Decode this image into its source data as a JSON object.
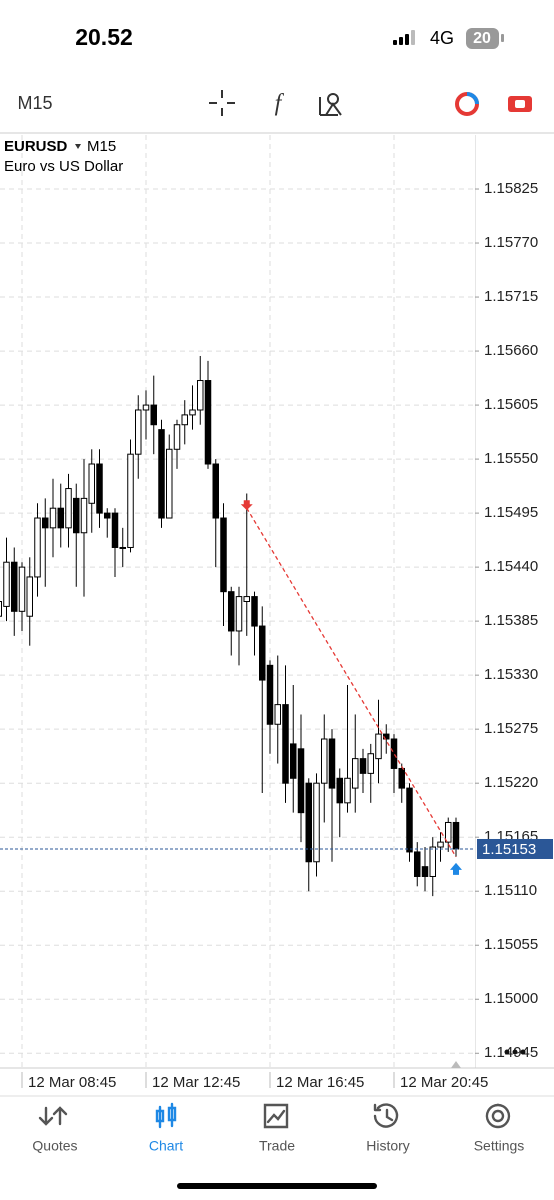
{
  "status_bar": {
    "time": "20.52",
    "network": "4G",
    "battery": "20"
  },
  "toolbar": {
    "timeframe": "M15"
  },
  "chart_data": {
    "type": "candlestick",
    "symbol": "EURUSD",
    "timeframe": "M15",
    "description": "Euro vs US Dollar",
    "categories": [
      null,
      null,
      null,
      "12 Mar 08:45",
      null,
      null,
      null,
      null,
      null,
      null,
      null,
      null,
      null,
      null,
      null,
      null,
      null,
      null,
      null,
      "12 Mar 12:45",
      null,
      null,
      null,
      null,
      null,
      null,
      null,
      null,
      null,
      null,
      null,
      null,
      null,
      null,
      null,
      "12 Mar 16:45",
      null,
      null,
      null,
      null,
      null,
      null,
      null,
      null,
      null,
      null,
      null,
      null,
      null,
      null,
      null,
      "12 Mar 20:45",
      null,
      null,
      null,
      null,
      null,
      null,
      null,
      null
    ],
    "open": [
      1.1539,
      1.154,
      1.15445,
      1.15395,
      1.1539,
      1.1543,
      1.1549,
      1.1548,
      1.155,
      1.1548,
      1.1551,
      1.15475,
      1.15505,
      1.15545,
      1.15495,
      1.15495,
      1.1546,
      1.1546,
      1.15555,
      1.156,
      1.15605,
      1.1558,
      1.1549,
      1.1556,
      1.15585,
      1.15595,
      1.156,
      1.1563,
      1.15545,
      1.1549,
      1.15415,
      1.15375,
      1.15405,
      1.1541,
      1.1538,
      1.1534,
      1.1528,
      1.153,
      1.1526,
      1.15255,
      1.1522,
      1.1514,
      1.1522,
      1.15265,
      1.15225,
      1.152,
      1.15215,
      1.15245,
      1.1523,
      1.15245,
      1.1527,
      1.15265,
      1.15235,
      1.15215,
      1.1515,
      1.15135,
      1.15125,
      1.15155,
      1.1516,
      1.1518
    ],
    "high": [
      1.1542,
      1.1547,
      1.1546,
      1.15445,
      1.1545,
      1.15505,
      1.1551,
      1.1553,
      1.15525,
      1.15535,
      1.15525,
      1.1555,
      1.1556,
      1.1556,
      1.155,
      1.155,
      1.1548,
      1.1557,
      1.15615,
      1.1562,
      1.15635,
      1.1559,
      1.15575,
      1.1559,
      1.1561,
      1.15625,
      1.15655,
      1.1565,
      1.1555,
      1.15505,
      1.1542,
      1.1542,
      1.15515,
      1.15415,
      1.154,
      1.15345,
      1.1535,
      1.1534,
      1.1532,
      1.1529,
      1.15225,
      1.1523,
      1.1529,
      1.15275,
      1.15235,
      1.1532,
      1.1529,
      1.15255,
      1.1526,
      1.15305,
      1.1528,
      1.1527,
      1.1524,
      1.1522,
      1.1516,
      1.15155,
      1.15165,
      1.1517,
      1.15185,
      1.15185
    ],
    "low": [
      1.1529,
      1.15385,
      1.1537,
      1.15375,
      1.1536,
      1.1541,
      1.1542,
      1.1545,
      1.1546,
      1.1546,
      1.1542,
      1.1541,
      1.15475,
      1.1548,
      1.1547,
      1.1543,
      1.1544,
      1.15455,
      1.1553,
      1.1557,
      1.15555,
      1.1548,
      1.1549,
      1.1554,
      1.15565,
      1.1558,
      1.15585,
      1.1554,
      1.1544,
      1.1538,
      1.1535,
      1.1534,
      1.1537,
      1.1535,
      1.1521,
      1.1525,
      1.1524,
      1.152,
      1.1519,
      1.1516,
      1.1511,
      1.15125,
      1.1518,
      1.1514,
      1.15165,
      1.1519,
      1.1519,
      1.1521,
      1.152,
      1.1522,
      1.1525,
      1.1521,
      1.152,
      1.1514,
      1.15115,
      1.1511,
      1.15105,
      1.1514,
      1.1515,
      1.15145
    ],
    "close": [
      1.15405,
      1.15445,
      1.15395,
      1.1544,
      1.1543,
      1.1549,
      1.1548,
      1.155,
      1.1548,
      1.1552,
      1.15475,
      1.1551,
      1.15545,
      1.15495,
      1.1549,
      1.1546,
      1.1546,
      1.15555,
      1.156,
      1.15605,
      1.15585,
      1.1549,
      1.1556,
      1.15585,
      1.15595,
      1.156,
      1.1563,
      1.15545,
      1.1549,
      1.15415,
      1.15375,
      1.1541,
      1.1541,
      1.1538,
      1.15325,
      1.1528,
      1.153,
      1.1522,
      1.15225,
      1.1519,
      1.1514,
      1.1522,
      1.15265,
      1.15215,
      1.152,
      1.15225,
      1.15245,
      1.1523,
      1.1525,
      1.1527,
      1.15265,
      1.15235,
      1.15215,
      1.1515,
      1.15125,
      1.15125,
      1.15155,
      1.1516,
      1.1518,
      1.15153
    ],
    "up_color": "#ffffff",
    "down_color": "#000000",
    "ylim": [
      1.1493,
      1.1588
    ],
    "yticks": [
      1.14945,
      {
        "value": 1.15,
        "label": "1.15000"
      },
      1.15055,
      {
        "value": 1.1511,
        "label": "1.15110"
      },
      1.15165,
      {
        "value": 1.1522,
        "label": "1.15220"
      },
      1.15275,
      {
        "value": 1.1533,
        "label": "1.15330"
      },
      1.15385,
      {
        "value": 1.1544,
        "label": "1.15440"
      },
      1.15495,
      {
        "value": 1.1555,
        "label": "1.15550"
      },
      1.15605,
      {
        "value": 1.1566,
        "label": "1.15660"
      },
      1.15715,
      {
        "value": 1.1577,
        "label": "1.15770"
      },
      1.15825
    ],
    "grid": true,
    "current_price": 1.15153,
    "current_price_color": "#2b5797",
    "trade_line": {
      "x": [
        32,
        59
      ],
      "y": [
        1.155,
        1.15145
      ],
      "color": "#e53935",
      "exit_color": "#1e88e5"
    }
  },
  "tab_bar": {
    "tabs": [
      "Quotes",
      "Chart",
      "Trade",
      "History",
      "Settings"
    ],
    "active": 1,
    "active_color": "#1e88e5"
  }
}
